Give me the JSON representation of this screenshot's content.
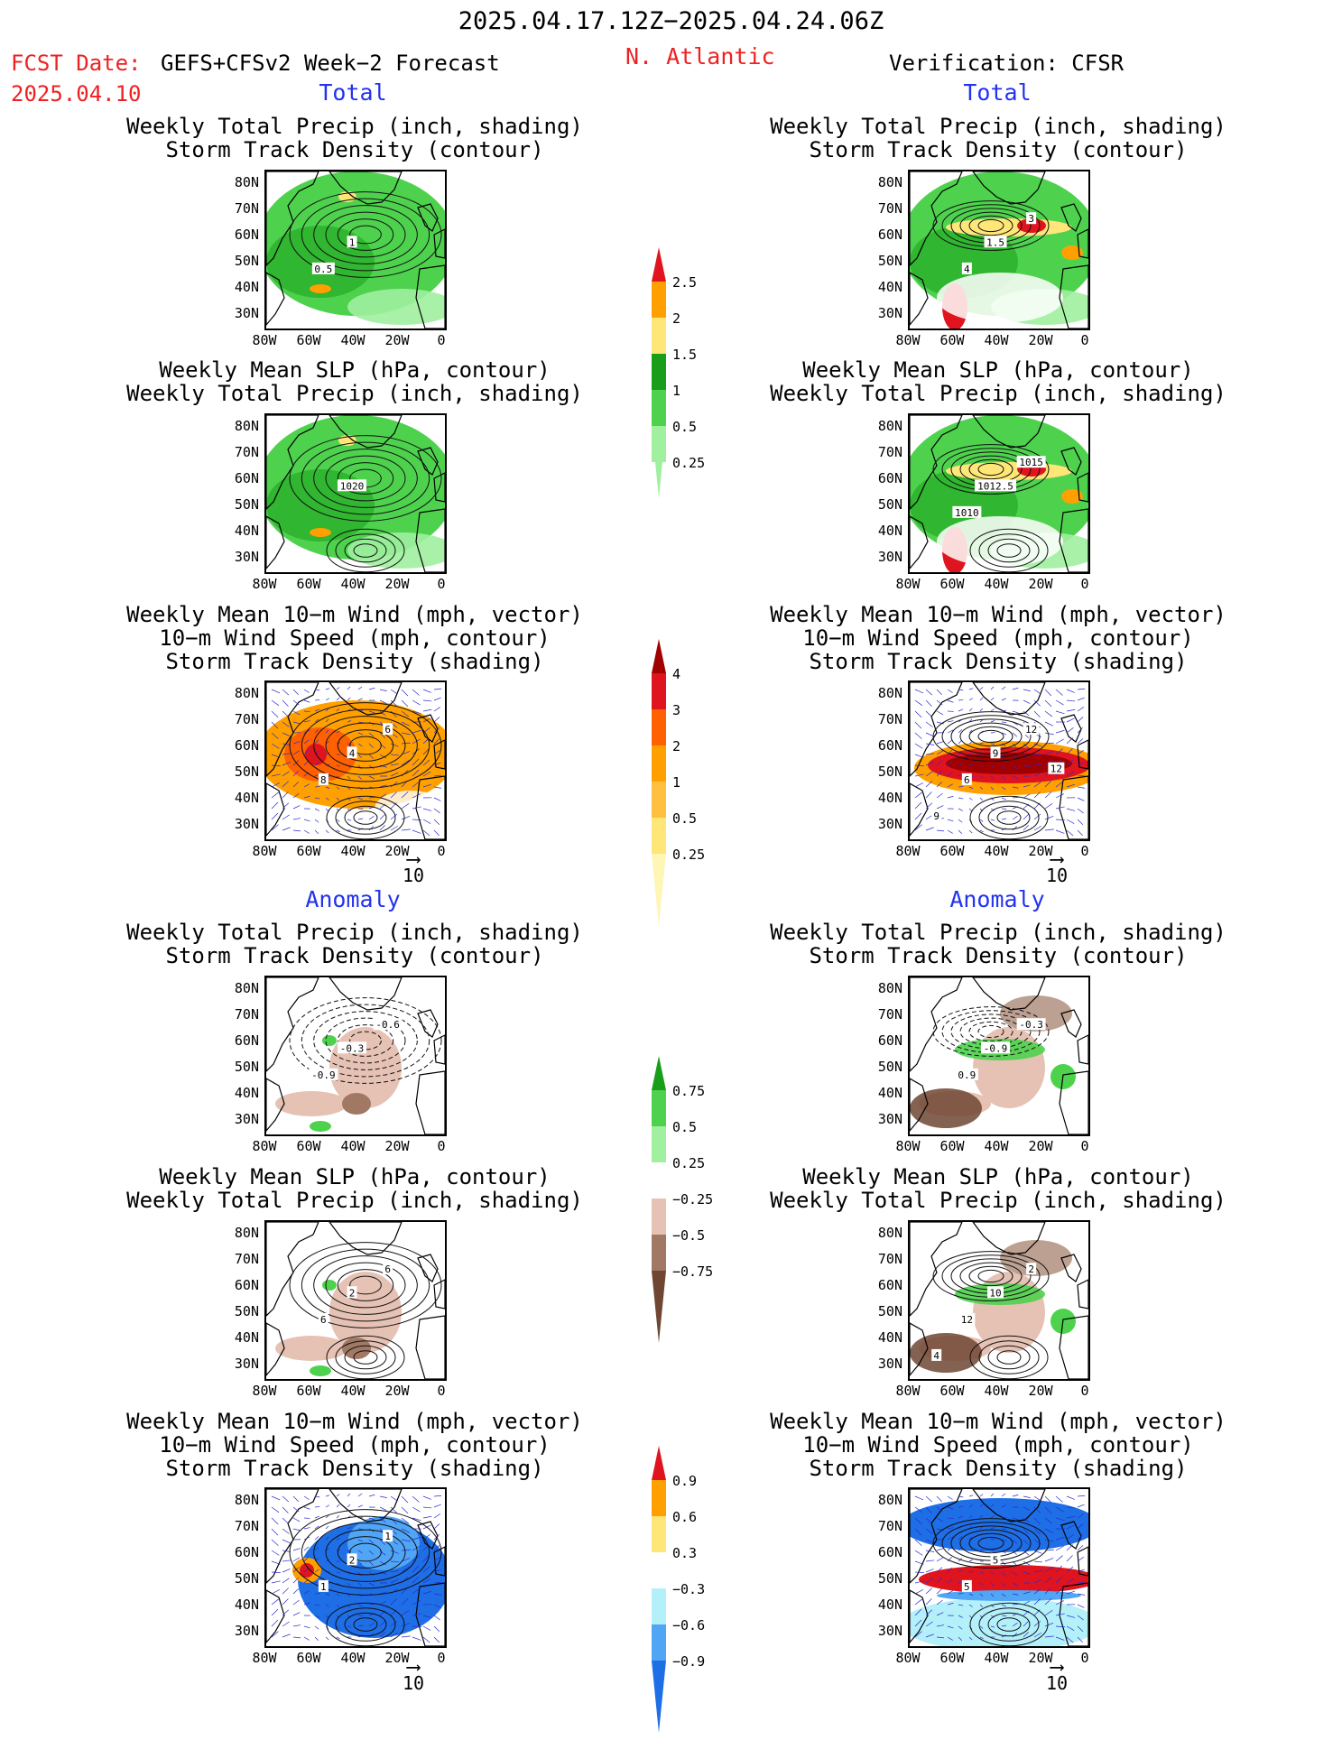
{
  "header": {
    "date_range": "2025.04.17.12Z−2025.04.24.06Z",
    "fcst_date_label": "FCST Date:",
    "forecast_name": "GEFS+CFSv2 Week−2 Forecast",
    "fcst_date": "2025.04.10",
    "region": "N. Atlantic",
    "verification": "Verification: CFSR"
  },
  "sections": {
    "total": "Total",
    "anomaly": "Anomaly"
  },
  "panel_titles": {
    "precip_track": [
      "Weekly Total Precip (inch, shading)",
      "Storm Track Density (contour)"
    ],
    "slp_precip": [
      "Weekly Mean SLP (hPa, contour)",
      "Weekly Total Precip (inch, shading)"
    ],
    "wind_track": [
      "Weekly Mean 10−m Wind (mph, vector)",
      "10−m Wind Speed (mph, contour)",
      "Storm Track Density (shading)"
    ]
  },
  "axes": {
    "lat_ticks": [
      "80N",
      "70N",
      "60N",
      "50N",
      "40N",
      "30N"
    ],
    "lon_ticks": [
      "80W",
      "60W",
      "40W",
      "20W",
      "0"
    ]
  },
  "vector_ref": "10",
  "contour_labels": {
    "fc_total_precip": [
      "1",
      "0.5"
    ],
    "ob_total_precip": [
      "1.5",
      "4",
      "3"
    ],
    "fc_total_slp": [
      "1020"
    ],
    "ob_total_slp": [
      "1012.5",
      "1010",
      "1015"
    ],
    "fc_total_wind": [
      "4",
      "8",
      "6"
    ],
    "ob_total_wind": [
      "9",
      "6",
      "12",
      "9",
      "12"
    ],
    "fc_anom_precip": [
      "-0.3",
      "-0.9",
      "-0.6"
    ],
    "ob_anom_precip": [
      "-0.9",
      "0.9",
      "-0.3"
    ],
    "fc_anom_slp": [
      "2",
      "6",
      "6"
    ],
    "ob_anom_slp": [
      "10",
      "12",
      "2",
      "4"
    ],
    "fc_anom_wind": [
      "2",
      "1",
      "1"
    ],
    "ob_anom_wind": [
      "5",
      "5"
    ]
  },
  "colorbars": {
    "precip_total": {
      "labels": [
        "2.5",
        "2",
        "1.5",
        "1",
        "0.5",
        "0.25"
      ],
      "colors": [
        "#e0141e",
        "#ffa000",
        "#ffe678",
        "#189e18",
        "#4ed24e",
        "#a0f0a0"
      ]
    },
    "track_total": {
      "labels": [
        "4",
        "3",
        "2",
        "1",
        "0.5",
        "0.25"
      ],
      "colors": [
        "#a00000",
        "#e0141e",
        "#ff6000",
        "#ffa000",
        "#ffc040",
        "#ffe678",
        "#fff5b4"
      ]
    },
    "precip_anom": {
      "labels": [
        "0.75",
        "0.5",
        "0.25",
        "−0.25",
        "−0.5",
        "−0.75"
      ],
      "colors": [
        "#189e18",
        "#4ed24e",
        "#a0f0a0",
        "#ffffff",
        "#e6c2b4",
        "#a07864",
        "#6e4632"
      ]
    },
    "track_anom": {
      "labels": [
        "0.9",
        "0.6",
        "0.3",
        "−0.3",
        "−0.6",
        "−0.9"
      ],
      "colors": [
        "#e0141e",
        "#ffa000",
        "#ffe678",
        "#ffffff",
        "#b4f0fa",
        "#50a5f5",
        "#1e6ee6"
      ]
    }
  }
}
